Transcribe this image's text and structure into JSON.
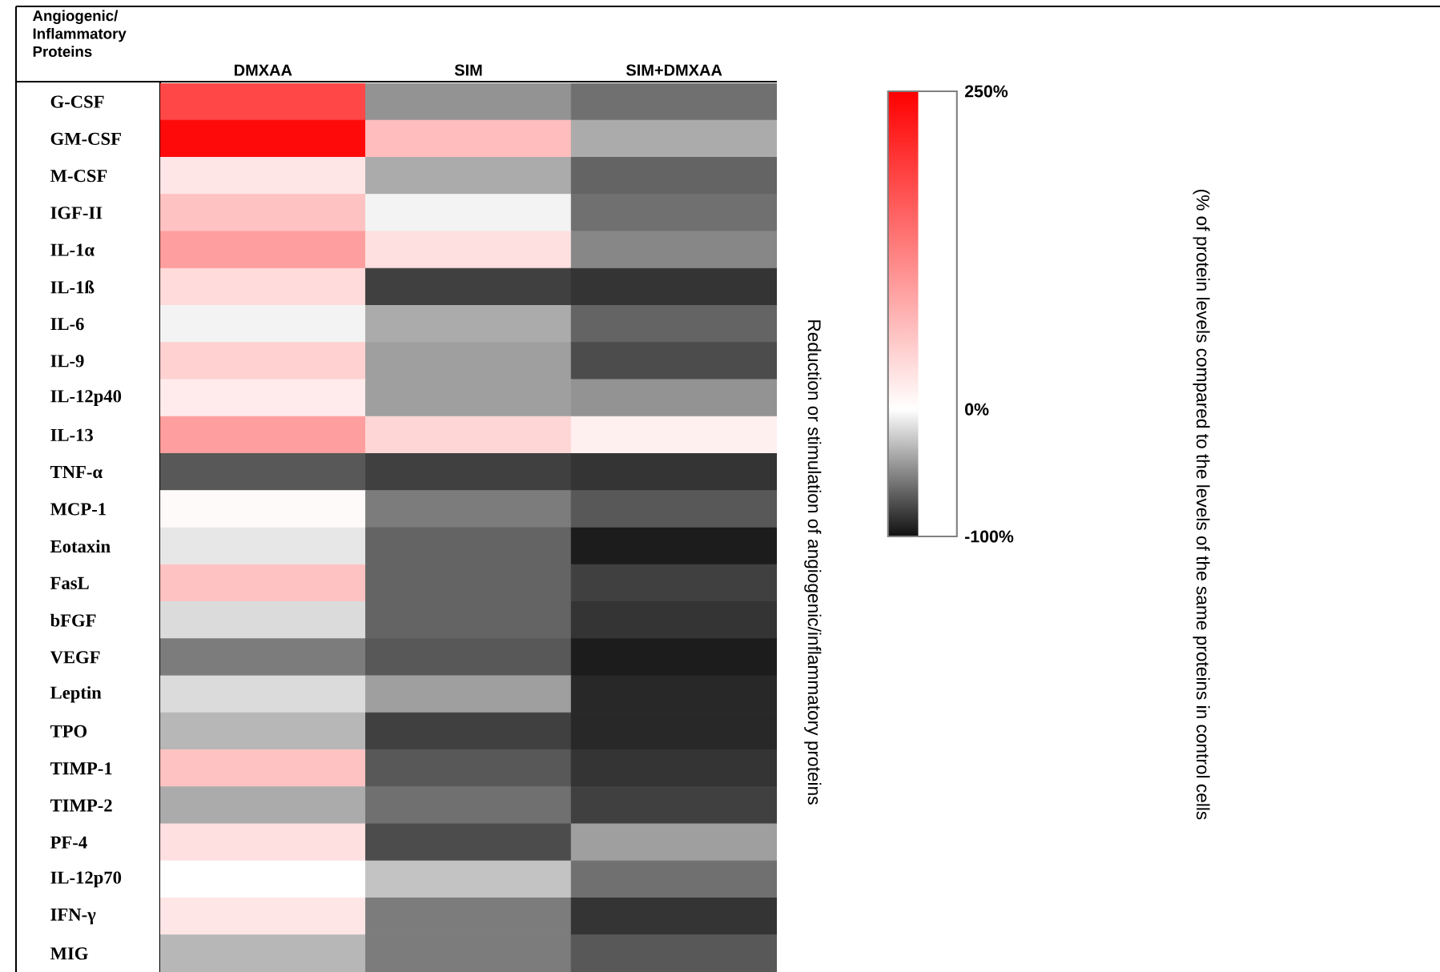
{
  "chart_data": {
    "type": "heatmap",
    "clabel": "Reduction or stimulation of angiogenic/inflammatory proteins",
    "annotations": [
      "Angiogenic/ Inflammatory Proteins",
      "(% of protein levels compared to the levels of the same proteins in control cells"
    ],
    "categories": [
      "DMXAA",
      "SIM",
      "SIM+DMXAA"
    ],
    "y_categories": [
      "G-CSF",
      "GM-CSF",
      "M-CSF",
      "IGF-II",
      "IL-1α",
      "IL-1ß",
      "IL-6",
      "IL-9",
      "IL-12p40",
      "IL-13",
      "TNF-α",
      "MCP-1",
      "Eotaxin",
      "FasL",
      "bFGF",
      "VEGF",
      "Leptin",
      "TPO",
      "TIMP-1",
      "TIMP-2",
      "PF-4",
      "IL-12p70",
      "IFN-γ",
      "MIG"
    ],
    "cells": [
      [
        180,
        -45,
        -60
      ],
      [
        240,
        65,
        -35
      ],
      [
        25,
        -35,
        -65
      ],
      [
        60,
        -5,
        -60
      ],
      [
        95,
        30,
        -50
      ],
      [
        35,
        -80,
        -85
      ],
      [
        -5,
        -35,
        -65
      ],
      [
        45,
        -40,
        -75
      ],
      [
        20,
        -40,
        -45
      ],
      [
        95,
        40,
        15
      ],
      [
        -70,
        -80,
        -85
      ],
      [
        5,
        -55,
        -70
      ],
      [
        -10,
        -65,
        -95
      ],
      [
        60,
        -65,
        -80
      ],
      [
        -15,
        -65,
        -85
      ],
      [
        -55,
        -70,
        -95
      ],
      [
        -15,
        -40,
        -90
      ],
      [
        -30,
        -80,
        -90
      ],
      [
        60,
        -70,
        -85
      ],
      [
        -35,
        -60,
        -80
      ],
      [
        30,
        -75,
        -40
      ],
      [
        0,
        -25,
        -60
      ],
      [
        25,
        -55,
        -85
      ],
      [
        -30,
        -55,
        -70
      ]
    ],
    "clim": [
      -100,
      250
    ],
    "cticks": [
      {
        "value": 250,
        "label": "250%"
      },
      {
        "value": 0,
        "label": "0%"
      },
      {
        "value": -100,
        "label": "-100%"
      }
    ]
  }
}
